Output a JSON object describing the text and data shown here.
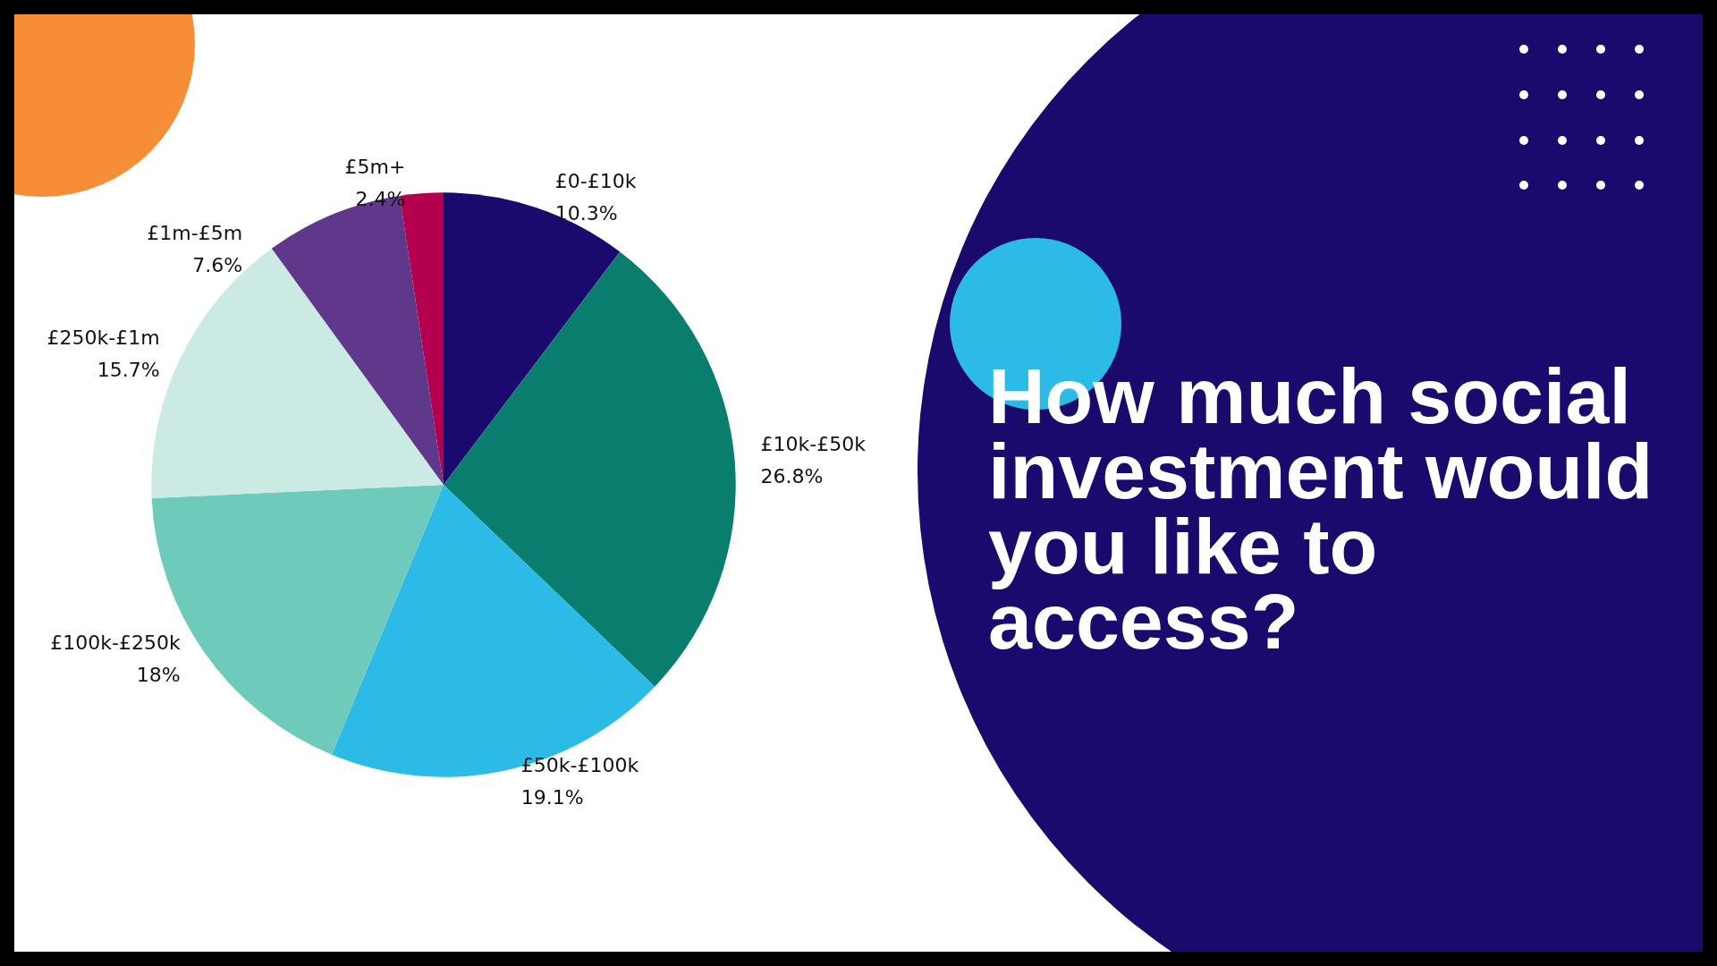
{
  "chart_data": {
    "type": "pie",
    "title": "How much social investment would you like to access?",
    "categories": [
      "£0-£10k",
      "£10k-£50k",
      "£50k-£100k",
      "£100k-£250k",
      "£250k-£1m",
      "£1m-£5m",
      "£5m+"
    ],
    "values": [
      10.3,
      26.8,
      19.1,
      18,
      15.7,
      7.6,
      2.4
    ],
    "colors": [
      "#1a0a6e",
      "#0a7e6e",
      "#2cbae6",
      "#6ecbbb",
      "#cceae4",
      "#5f378b",
      "#b5004f"
    ],
    "value_labels": [
      "10.3%",
      "26.8%",
      "19.1%",
      "18%",
      "15.7%",
      "7.6%",
      "2.4%"
    ],
    "legend": false
  }
}
